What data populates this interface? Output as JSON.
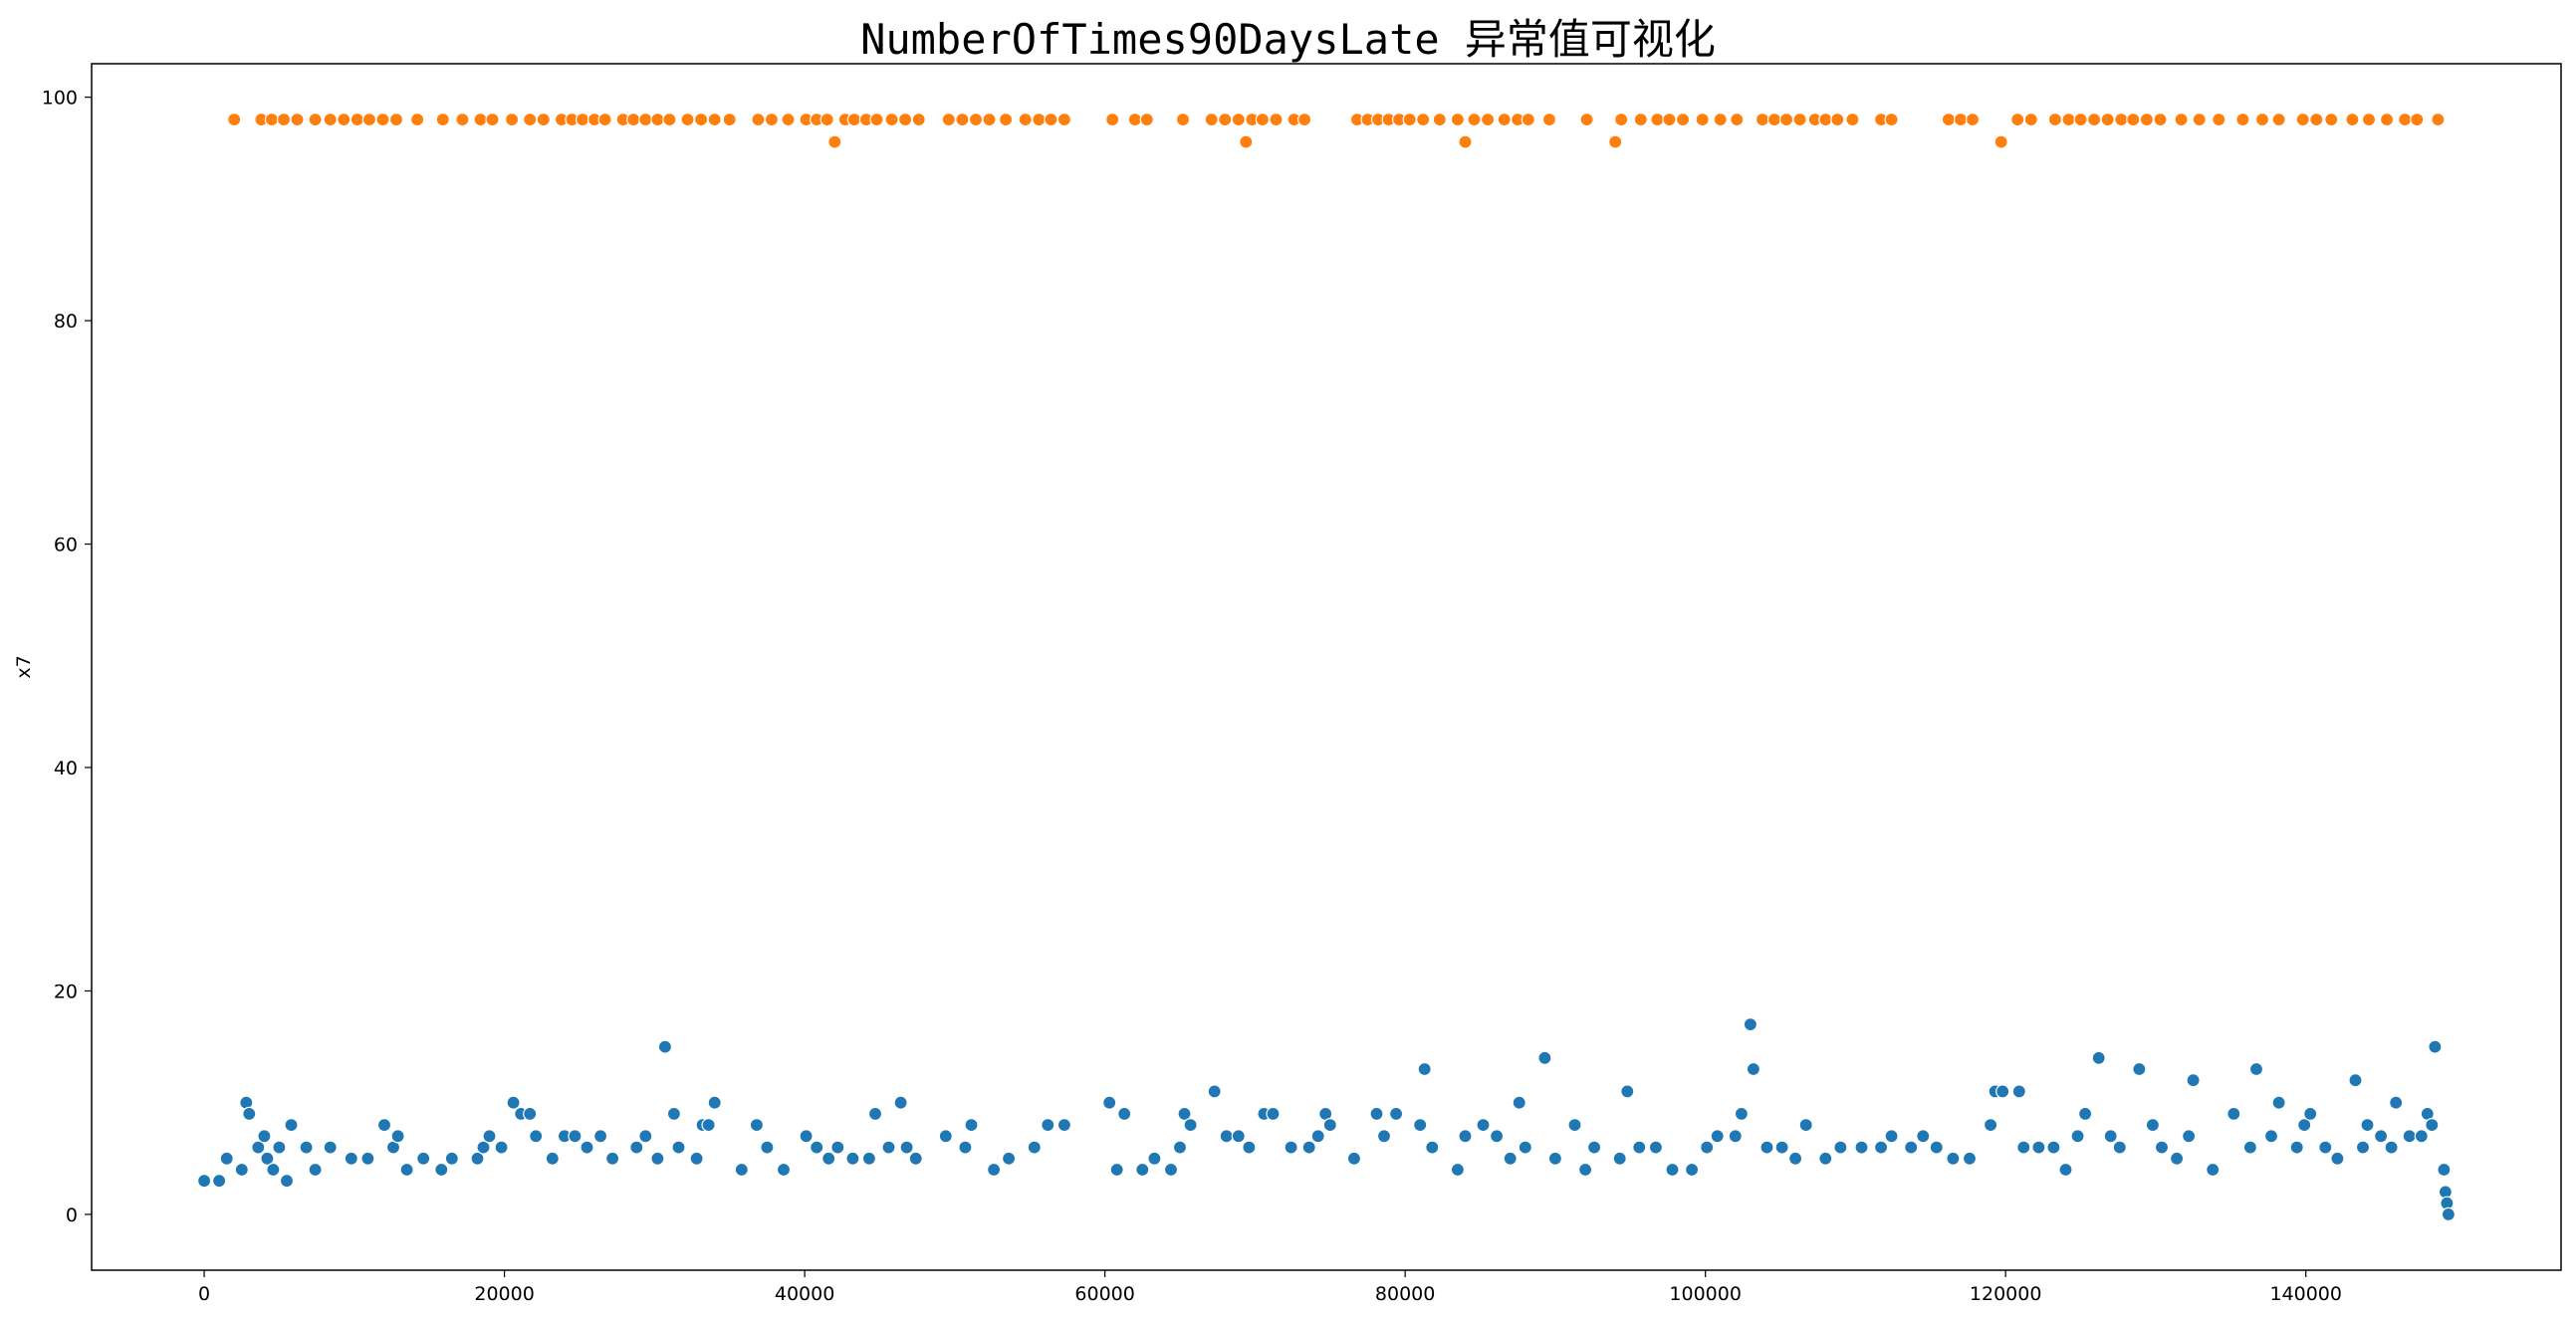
{
  "chart_data": {
    "type": "scatter",
    "title": "NumberOfTimes90DaysLate 异常值可视化",
    "xlabel": "",
    "ylabel": "x7",
    "xlim": [
      -7500,
      157000
    ],
    "ylim": [
      -5,
      103
    ],
    "x_ticks": [
      0,
      20000,
      40000,
      60000,
      80000,
      100000,
      120000,
      140000
    ],
    "y_ticks": [
      0,
      20,
      40,
      60,
      80,
      100
    ],
    "grid": false,
    "legend": "none",
    "series": [
      {
        "color": "#1f77b4",
        "points": [
          [
            0,
            3
          ],
          [
            1000,
            3
          ],
          [
            1500,
            5
          ],
          [
            2500,
            4
          ],
          [
            2800,
            10
          ],
          [
            3000,
            9
          ],
          [
            3600,
            6
          ],
          [
            4000,
            7
          ],
          [
            4200,
            5
          ],
          [
            4600,
            4
          ],
          [
            5000,
            6
          ],
          [
            5500,
            3
          ],
          [
            5800,
            8
          ],
          [
            6800,
            6
          ],
          [
            7400,
            4
          ],
          [
            8400,
            6
          ],
          [
            9800,
            5
          ],
          [
            10900,
            5
          ],
          [
            12000,
            8
          ],
          [
            12600,
            6
          ],
          [
            12900,
            7
          ],
          [
            13500,
            4
          ],
          [
            14600,
            5
          ],
          [
            15800,
            4
          ],
          [
            16500,
            5
          ],
          [
            18200,
            5
          ],
          [
            18600,
            6
          ],
          [
            19000,
            7
          ],
          [
            19800,
            6
          ],
          [
            20600,
            10
          ],
          [
            21100,
            9
          ],
          [
            21700,
            9
          ],
          [
            22100,
            7
          ],
          [
            23200,
            5
          ],
          [
            24000,
            7
          ],
          [
            24700,
            7
          ],
          [
            25500,
            6
          ],
          [
            26400,
            7
          ],
          [
            27200,
            5
          ],
          [
            28800,
            6
          ],
          [
            29400,
            7
          ],
          [
            30200,
            5
          ],
          [
            30700,
            15
          ],
          [
            31300,
            9
          ],
          [
            31600,
            6
          ],
          [
            32800,
            5
          ],
          [
            33200,
            8
          ],
          [
            33600,
            8
          ],
          [
            34000,
            10
          ],
          [
            35800,
            4
          ],
          [
            36800,
            8
          ],
          [
            37500,
            6
          ],
          [
            38600,
            4
          ],
          [
            40100,
            7
          ],
          [
            40800,
            6
          ],
          [
            41600,
            5
          ],
          [
            42200,
            6
          ],
          [
            43200,
            5
          ],
          [
            44300,
            5
          ],
          [
            44700,
            9
          ],
          [
            45600,
            6
          ],
          [
            46400,
            10
          ],
          [
            46800,
            6
          ],
          [
            47400,
            5
          ],
          [
            49400,
            7
          ],
          [
            50700,
            6
          ],
          [
            51100,
            8
          ],
          [
            52600,
            4
          ],
          [
            53600,
            5
          ],
          [
            55300,
            6
          ],
          [
            56200,
            8
          ],
          [
            57300,
            8
          ],
          [
            60300,
            10
          ],
          [
            60800,
            4
          ],
          [
            61300,
            9
          ],
          [
            62500,
            4
          ],
          [
            63300,
            5
          ],
          [
            64400,
            4
          ],
          [
            65000,
            6
          ],
          [
            65300,
            9
          ],
          [
            65700,
            8
          ],
          [
            67300,
            11
          ],
          [
            68100,
            7
          ],
          [
            68900,
            7
          ],
          [
            69600,
            6
          ],
          [
            70600,
            9
          ],
          [
            71200,
            9
          ],
          [
            72400,
            6
          ],
          [
            73600,
            6
          ],
          [
            74200,
            7
          ],
          [
            74700,
            9
          ],
          [
            75000,
            8
          ],
          [
            76600,
            5
          ],
          [
            78100,
            9
          ],
          [
            78600,
            7
          ],
          [
            79400,
            9
          ],
          [
            81000,
            8
          ],
          [
            81300,
            13
          ],
          [
            81800,
            6
          ],
          [
            83500,
            4
          ],
          [
            84000,
            7
          ],
          [
            85200,
            8
          ],
          [
            86100,
            7
          ],
          [
            87000,
            5
          ],
          [
            87600,
            10
          ],
          [
            88000,
            6
          ],
          [
            89300,
            14
          ],
          [
            90000,
            5
          ],
          [
            91300,
            8
          ],
          [
            92000,
            4
          ],
          [
            92600,
            6
          ],
          [
            94300,
            5
          ],
          [
            94800,
            11
          ],
          [
            95600,
            6
          ],
          [
            96700,
            6
          ],
          [
            97800,
            4
          ],
          [
            99100,
            4
          ],
          [
            100100,
            6
          ],
          [
            100800,
            7
          ],
          [
            102000,
            7
          ],
          [
            102400,
            9
          ],
          [
            103000,
            17
          ],
          [
            103200,
            13
          ],
          [
            104100,
            6
          ],
          [
            105100,
            6
          ],
          [
            106000,
            5
          ],
          [
            106700,
            8
          ],
          [
            108000,
            5
          ],
          [
            109000,
            6
          ],
          [
            110400,
            6
          ],
          [
            111700,
            6
          ],
          [
            112400,
            7
          ],
          [
            113700,
            6
          ],
          [
            114500,
            7
          ],
          [
            115400,
            6
          ],
          [
            116500,
            5
          ],
          [
            117600,
            5
          ],
          [
            119000,
            8
          ],
          [
            119300,
            11
          ],
          [
            119800,
            11
          ],
          [
            120900,
            11
          ],
          [
            121200,
            6
          ],
          [
            122200,
            6
          ],
          [
            123200,
            6
          ],
          [
            124000,
            4
          ],
          [
            124800,
            7
          ],
          [
            125300,
            9
          ],
          [
            126200,
            14
          ],
          [
            127000,
            7
          ],
          [
            127600,
            6
          ],
          [
            128900,
            13
          ],
          [
            129800,
            8
          ],
          [
            130400,
            6
          ],
          [
            131400,
            5
          ],
          [
            132200,
            7
          ],
          [
            132500,
            12
          ],
          [
            133800,
            4
          ],
          [
            135200,
            9
          ],
          [
            136300,
            6
          ],
          [
            136700,
            13
          ],
          [
            137700,
            7
          ],
          [
            138200,
            10
          ],
          [
            139400,
            6
          ],
          [
            139900,
            8
          ],
          [
            140300,
            9
          ],
          [
            141300,
            6
          ],
          [
            142100,
            5
          ],
          [
            143300,
            12
          ],
          [
            143800,
            6
          ],
          [
            144100,
            8
          ],
          [
            145000,
            7
          ],
          [
            145700,
            6
          ],
          [
            146000,
            10
          ],
          [
            146900,
            7
          ],
          [
            147700,
            7
          ],
          [
            148100,
            9
          ],
          [
            148400,
            8
          ],
          [
            148600,
            15
          ],
          [
            149200,
            4
          ],
          [
            149300,
            2
          ],
          [
            149400,
            1
          ],
          [
            149500,
            0
          ]
        ]
      },
      {
        "color": "#ff7f0e",
        "points": [
          [
            2000,
            98
          ],
          [
            3800,
            98
          ],
          [
            4500,
            98
          ],
          [
            5300,
            98
          ],
          [
            6200,
            98
          ],
          [
            7400,
            98
          ],
          [
            8400,
            98
          ],
          [
            9300,
            98
          ],
          [
            10200,
            98
          ],
          [
            11000,
            98
          ],
          [
            11900,
            98
          ],
          [
            12800,
            98
          ],
          [
            14200,
            98
          ],
          [
            15900,
            98
          ],
          [
            17200,
            98
          ],
          [
            18400,
            98
          ],
          [
            19200,
            98
          ],
          [
            20500,
            98
          ],
          [
            21700,
            98
          ],
          [
            22600,
            98
          ],
          [
            23800,
            98
          ],
          [
            24500,
            98
          ],
          [
            25200,
            98
          ],
          [
            26000,
            98
          ],
          [
            26700,
            98
          ],
          [
            27900,
            98
          ],
          [
            28600,
            98
          ],
          [
            29400,
            98
          ],
          [
            30200,
            98
          ],
          [
            31000,
            98
          ],
          [
            32200,
            98
          ],
          [
            33100,
            98
          ],
          [
            34000,
            98
          ],
          [
            35000,
            98
          ],
          [
            36900,
            98
          ],
          [
            37800,
            98
          ],
          [
            38900,
            98
          ],
          [
            40100,
            98
          ],
          [
            40800,
            98
          ],
          [
            41500,
            98
          ],
          [
            42000,
            96
          ],
          [
            42700,
            98
          ],
          [
            43300,
            98
          ],
          [
            44100,
            98
          ],
          [
            44800,
            98
          ],
          [
            45800,
            98
          ],
          [
            46700,
            98
          ],
          [
            47600,
            98
          ],
          [
            49600,
            98
          ],
          [
            50500,
            98
          ],
          [
            51400,
            98
          ],
          [
            52300,
            98
          ],
          [
            53400,
            98
          ],
          [
            54700,
            98
          ],
          [
            55600,
            98
          ],
          [
            56400,
            98
          ],
          [
            57300,
            98
          ],
          [
            60500,
            98
          ],
          [
            62000,
            98
          ],
          [
            62800,
            98
          ],
          [
            65200,
            98
          ],
          [
            67100,
            98
          ],
          [
            68000,
            98
          ],
          [
            68900,
            98
          ],
          [
            69400,
            96
          ],
          [
            69800,
            98
          ],
          [
            70500,
            98
          ],
          [
            71400,
            98
          ],
          [
            72600,
            98
          ],
          [
            73300,
            98
          ],
          [
            76800,
            98
          ],
          [
            77500,
            98
          ],
          [
            78200,
            98
          ],
          [
            78900,
            98
          ],
          [
            79600,
            98
          ],
          [
            80300,
            98
          ],
          [
            81200,
            98
          ],
          [
            82300,
            98
          ],
          [
            83500,
            98
          ],
          [
            84000,
            96
          ],
          [
            84600,
            98
          ],
          [
            85500,
            98
          ],
          [
            86600,
            98
          ],
          [
            87500,
            98
          ],
          [
            88200,
            98
          ],
          [
            89600,
            98
          ],
          [
            92100,
            98
          ],
          [
            94000,
            96
          ],
          [
            94400,
            98
          ],
          [
            95700,
            98
          ],
          [
            96800,
            98
          ],
          [
            97600,
            98
          ],
          [
            98500,
            98
          ],
          [
            99800,
            98
          ],
          [
            101000,
            98
          ],
          [
            102100,
            98
          ],
          [
            103800,
            98
          ],
          [
            104600,
            98
          ],
          [
            105400,
            98
          ],
          [
            106300,
            98
          ],
          [
            107300,
            98
          ],
          [
            108000,
            98
          ],
          [
            108800,
            98
          ],
          [
            109800,
            98
          ],
          [
            111700,
            98
          ],
          [
            112400,
            98
          ],
          [
            116200,
            98
          ],
          [
            117000,
            98
          ],
          [
            117800,
            98
          ],
          [
            119700,
            96
          ],
          [
            120800,
            98
          ],
          [
            121700,
            98
          ],
          [
            123300,
            98
          ],
          [
            124200,
            98
          ],
          [
            125000,
            98
          ],
          [
            125900,
            98
          ],
          [
            126800,
            98
          ],
          [
            127700,
            98
          ],
          [
            128500,
            98
          ],
          [
            129400,
            98
          ],
          [
            130300,
            98
          ],
          [
            131700,
            98
          ],
          [
            132900,
            98
          ],
          [
            134200,
            98
          ],
          [
            135800,
            98
          ],
          [
            137100,
            98
          ],
          [
            138200,
            98
          ],
          [
            139800,
            98
          ],
          [
            140700,
            98
          ],
          [
            141700,
            98
          ],
          [
            143100,
            98
          ],
          [
            144200,
            98
          ],
          [
            145400,
            98
          ],
          [
            146600,
            98
          ],
          [
            147400,
            98
          ],
          [
            148800,
            98
          ]
        ]
      }
    ]
  }
}
